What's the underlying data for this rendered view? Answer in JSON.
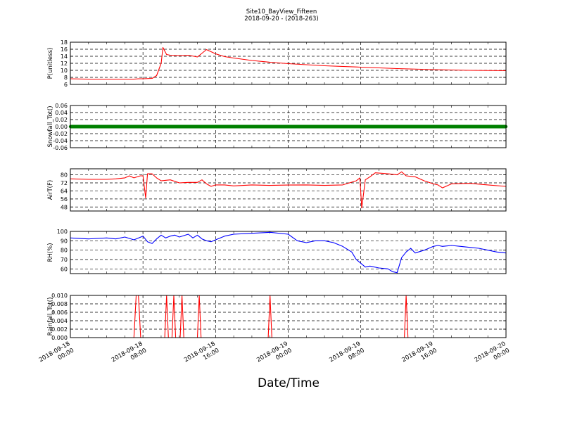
{
  "figure": {
    "title": "Site10_BayView_Fifteen",
    "subtitle": "2018-09-20 - (2018-263)",
    "xlabel": "Date/Time"
  },
  "x_ticks": [
    {
      "line1": "2018-09-18",
      "line2": "00:00",
      "hours": 0
    },
    {
      "line1": "2018-09-18",
      "line2": "08:00",
      "hours": 8
    },
    {
      "line1": "2018-09-18",
      "line2": "16:00",
      "hours": 16
    },
    {
      "line1": "2018-09-19",
      "line2": "00:00",
      "hours": 24
    },
    {
      "line1": "2018-09-19",
      "line2": "08:00",
      "hours": 32
    },
    {
      "line1": "2018-09-19",
      "line2": "16:00",
      "hours": 40
    },
    {
      "line1": "2018-09-20",
      "line2": "00:00",
      "hours": 48
    }
  ],
  "chart_data": [
    {
      "type": "line",
      "ylabel": "P(unitless)",
      "color": "#ff0000",
      "ylim": [
        6,
        18
      ],
      "yticks": [
        6,
        8,
        10,
        12,
        14,
        16,
        18
      ],
      "x_hours": [
        0,
        2,
        4,
        6,
        7,
        7.5,
        8,
        9,
        9.5,
        10,
        10.2,
        10.6,
        11,
        12,
        13,
        14,
        15,
        16,
        17,
        18,
        20,
        22,
        24,
        28,
        32,
        36,
        40,
        44,
        48
      ],
      "values": [
        7.6,
        7.5,
        7.5,
        7.5,
        7.5,
        7.6,
        7.6,
        7.7,
        8.5,
        12,
        16.5,
        14.5,
        14.3,
        14.2,
        14.3,
        13.8,
        15.9,
        14.7,
        13.9,
        13.5,
        12.8,
        12.3,
        11.9,
        11.3,
        10.9,
        10.5,
        10.2,
        10.0,
        9.9
      ]
    },
    {
      "type": "line",
      "ylabel": "Snowfall_Tot()",
      "color": "#008000",
      "ylim": [
        -0.06,
        0.06
      ],
      "yticks": [
        -0.06,
        -0.04,
        -0.02,
        0.0,
        0.02,
        0.04,
        0.06
      ],
      "x_hours": [
        0,
        48
      ],
      "values": [
        0,
        0
      ]
    },
    {
      "type": "line",
      "ylabel": "AirT(F)",
      "color": "#ff0000",
      "ylim": [
        44,
        86
      ],
      "yticks": [
        48,
        56,
        64,
        72,
        80
      ],
      "x_hours": [
        0,
        2,
        4,
        5,
        6,
        6.5,
        7,
        7.7,
        8,
        8.3,
        8.5,
        9,
        9.5,
        10,
        11,
        12,
        13,
        14,
        14.5,
        15,
        15.5,
        16,
        17,
        18,
        20,
        22,
        24,
        26,
        28,
        30,
        31.5,
        31.9,
        32.1,
        32.5,
        33,
        33.6,
        35,
        36,
        36.5,
        37,
        38,
        39,
        40,
        40.5,
        41,
        42,
        44,
        46,
        48
      ],
      "values": [
        76,
        75.5,
        75.5,
        76,
        77,
        79,
        77,
        79,
        79,
        57,
        81,
        81,
        77,
        74,
        75,
        72,
        72.5,
        72.5,
        75,
        71,
        68.5,
        70,
        70,
        69,
        70,
        69.5,
        69.8,
        70,
        69.5,
        70,
        74,
        77,
        47,
        75,
        78,
        82,
        81,
        80,
        83,
        79,
        78,
        74,
        71,
        70,
        67,
        71,
        71.5,
        70,
        68.5
      ]
    },
    {
      "type": "line",
      "ylabel": "RH(%)",
      "color": "#0000ff",
      "ylim": [
        55,
        100
      ],
      "yticks": [
        60,
        70,
        80,
        90,
        100
      ],
      "x_hours": [
        0,
        2,
        4,
        5,
        6,
        7,
        8,
        8.5,
        9,
        9.5,
        10,
        10.5,
        11,
        11.5,
        12,
        13,
        13.5,
        14,
        14.5,
        15,
        15.5,
        16,
        17,
        18,
        20,
        22,
        24,
        25,
        26,
        27,
        28,
        29,
        30,
        31,
        31.5,
        32,
        32.5,
        33,
        34,
        35,
        35.5,
        36,
        36.5,
        37,
        37.5,
        38,
        39,
        40,
        40.5,
        41,
        42,
        43,
        44,
        45,
        46,
        47,
        48
      ],
      "values": [
        93,
        92,
        93,
        92,
        94,
        91,
        95,
        89,
        87,
        92,
        96,
        93,
        95,
        96,
        94,
        97,
        93,
        96,
        92,
        90,
        89,
        91,
        95,
        97,
        98,
        99,
        97,
        90,
        88,
        90,
        90,
        88,
        84,
        78,
        70,
        66,
        62,
        63,
        61,
        60,
        57,
        56,
        72,
        78,
        82,
        77,
        80,
        84,
        85,
        84,
        85,
        84,
        83,
        82,
        80,
        78,
        77
      ]
    },
    {
      "type": "line",
      "ylabel": "Rainfall_Tot()",
      "color": "#ff0000",
      "ylim": [
        0,
        0.01
      ],
      "yticks": [
        0.0,
        0.002,
        0.004,
        0.006,
        0.008,
        0.01
      ],
      "x_hours": [
        0,
        7.0,
        7.25,
        7.5,
        7.75,
        10.4,
        10.6,
        10.8,
        11.2,
        11.4,
        11.6,
        12.1,
        12.3,
        12.5,
        14.0,
        14.2,
        14.4,
        21.8,
        22.0,
        22.2,
        36.8,
        37.0,
        37.2,
        48
      ],
      "values": [
        0,
        0,
        0.01,
        0.01,
        0,
        0,
        0.01,
        0,
        0,
        0.01,
        0,
        0,
        0.01,
        0,
        0,
        0.01,
        0,
        0,
        0.01,
        0,
        0,
        0.01,
        0,
        0
      ]
    }
  ]
}
